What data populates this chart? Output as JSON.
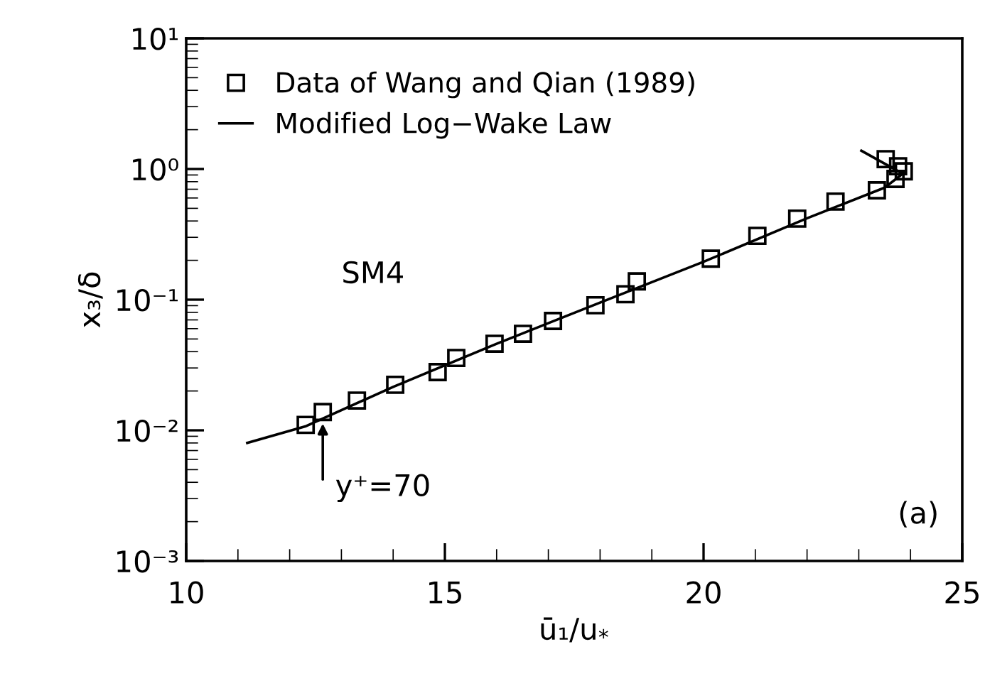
{
  "chart_data": {
    "type": "scatter",
    "xlabel": "ū₁/u$_{*}$",
    "ylabel": "x₃/δ",
    "log": "y",
    "xlim": [
      10,
      25
    ],
    "xticks": [
      10,
      15,
      20,
      25
    ],
    "ylim": [
      0.001,
      10
    ],
    "yticks": [
      {
        "value": 0.001,
        "label": "10⁻³"
      },
      {
        "value": 0.01,
        "label": "10⁻²"
      },
      {
        "value": 0.1,
        "label": "10⁻¹"
      },
      {
        "value": 1,
        "label": "10⁰"
      },
      {
        "value": 10,
        "label": "10¹"
      }
    ],
    "grid": false,
    "legend": "top left",
    "series": [
      {
        "name": "Data of Wang and Qian (1989)",
        "marker": "square",
        "color": "#000000",
        "x": [
          12.31,
          12.64,
          13.3,
          14.04,
          14.86,
          15.22,
          15.96,
          16.51,
          17.09,
          17.91,
          18.49,
          18.71,
          20.14,
          21.04,
          21.81,
          22.55,
          23.35,
          23.71,
          23.76,
          23.52,
          23.87
        ],
        "values": [
          0.011,
          0.0138,
          0.0169,
          0.0223,
          0.0279,
          0.0358,
          0.046,
          0.0548,
          0.0687,
          0.0906,
          0.11,
          0.138,
          0.206,
          0.308,
          0.417,
          0.563,
          0.687,
          0.839,
          1.05,
          1.19,
          0.96
        ]
      },
      {
        "name": "Modified Log−Wake Law",
        "type": "line",
        "marker": "none",
        "line_style": "solid",
        "color": "#000000",
        "x": [
          11.18,
          12.3,
          14.0,
          16.0,
          18.0,
          20.0,
          22.0,
          23.5,
          23.85,
          23.05
        ],
        "values": [
          0.008,
          0.0107,
          0.0215,
          0.046,
          0.095,
          0.195,
          0.42,
          0.72,
          0.92,
          1.38
        ]
      }
    ],
    "annotations": [
      "y⁺=70",
      "SM4",
      "(a)"
    ]
  }
}
